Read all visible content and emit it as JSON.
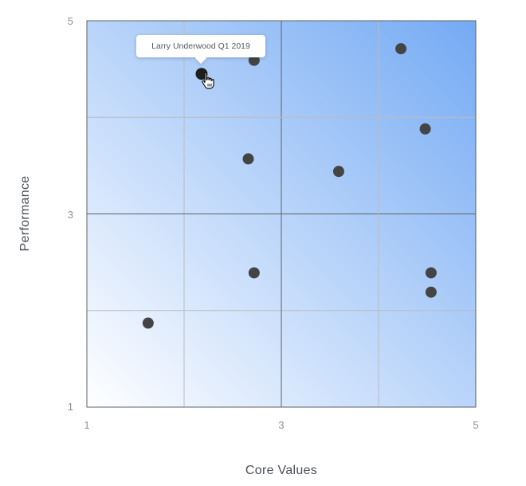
{
  "chart_data": {
    "type": "scatter",
    "xlabel": "Core Values",
    "ylabel": "Performance",
    "xlim": [
      1,
      5
    ],
    "ylim": [
      1,
      5
    ],
    "x_ticks": [
      "1",
      "3",
      "5"
    ],
    "y_ticks": [
      "1",
      "3",
      "5"
    ],
    "grid": true,
    "background_gradient": [
      "#ffffff",
      "#74aaf4"
    ],
    "point_color": "#444444",
    "points": [
      {
        "x": 2.18,
        "y": 4.45
      },
      {
        "x": 2.72,
        "y": 4.59
      },
      {
        "x": 4.23,
        "y": 4.71
      },
      {
        "x": 4.48,
        "y": 3.88
      },
      {
        "x": 2.66,
        "y": 3.57
      },
      {
        "x": 3.59,
        "y": 3.44
      },
      {
        "x": 2.72,
        "y": 2.39
      },
      {
        "x": 4.54,
        "y": 2.39
      },
      {
        "x": 4.54,
        "y": 2.19
      },
      {
        "x": 1.63,
        "y": 1.87
      }
    ],
    "tooltip": {
      "text": "Larry Underwood Q1 2019",
      "point_index": 0
    }
  }
}
